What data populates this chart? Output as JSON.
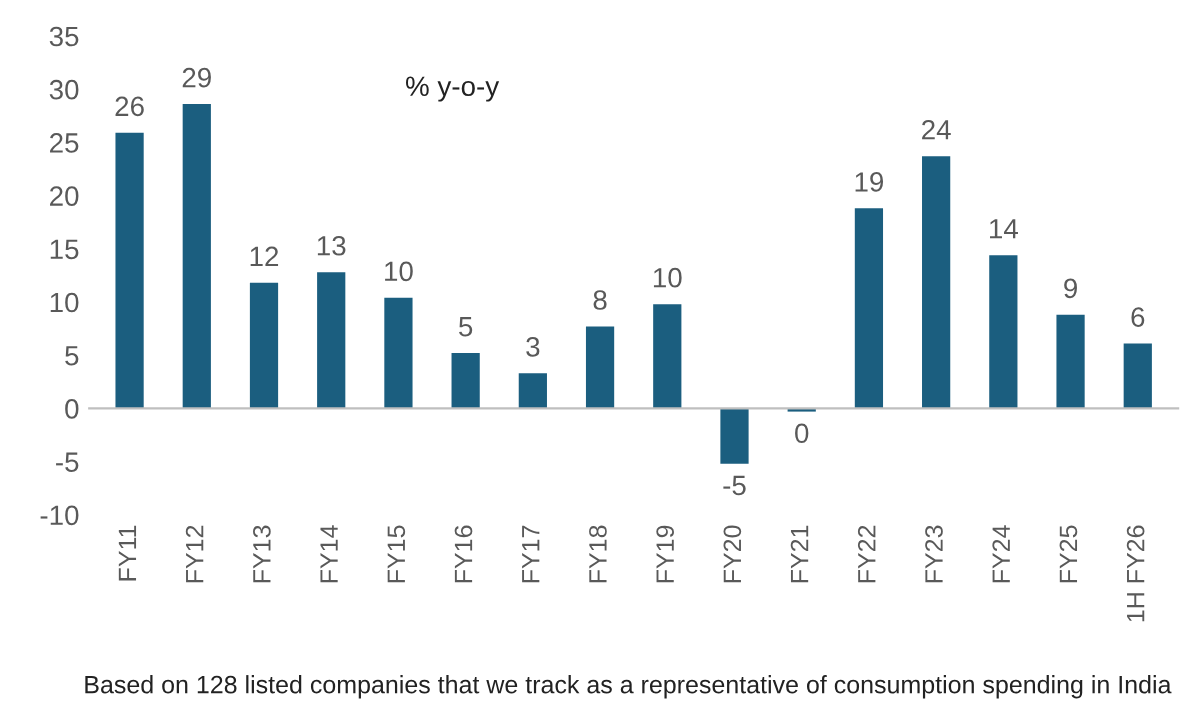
{
  "chart_data": {
    "type": "bar",
    "categories": [
      "FY11",
      "FY12",
      "FY13",
      "FY14",
      "FY15",
      "FY16",
      "FY17",
      "FY18",
      "FY19",
      "FY20",
      "FY21",
      "FY22",
      "FY23",
      "FY24",
      "FY25",
      "1H FY26"
    ],
    "values": [
      25.9,
      28.6,
      11.8,
      12.8,
      10.4,
      5.2,
      3.3,
      7.7,
      9.8,
      -5.2,
      -0.3,
      18.8,
      23.7,
      14.4,
      8.8,
      6.1
    ],
    "value_labels": [
      "26",
      "29",
      "12",
      "13",
      "10",
      "5",
      "3",
      "8",
      "10",
      "-5",
      "0",
      "19",
      "24",
      "14",
      "9",
      "6"
    ],
    "color": "#1b5e7f",
    "ylim": [
      -10,
      35
    ],
    "yticks": [
      -10,
      -5,
      0,
      5,
      10,
      15,
      20,
      25,
      30,
      35
    ],
    "legend": false,
    "annotations": [
      "% y-o-y",
      "Based on 128 listed companies that we track as a representative of consumption spending in India"
    ]
  }
}
